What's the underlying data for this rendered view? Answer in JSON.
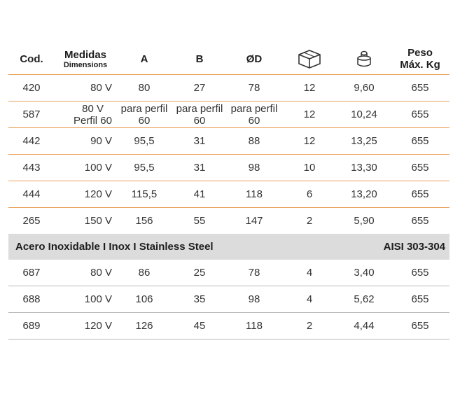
{
  "header": {
    "cod": "Cod.",
    "medidas": "Medidas",
    "dimensions": "Dimensions",
    "a": "A",
    "b": "B",
    "od": "ØD",
    "box_icon": "box-icon",
    "weight_icon": "weight-icon",
    "peso": "Peso",
    "max_kg": "Máx. Kg"
  },
  "rows": [
    {
      "cod": "420",
      "medidas": "80 V",
      "a": "80",
      "b": "27",
      "od": "78",
      "box": "12",
      "weight": "9,60",
      "peso": "655"
    },
    {
      "cod": "587",
      "medidas": [
        "80 V",
        "Perfil 60"
      ],
      "a": [
        "para perfil",
        "60"
      ],
      "b": [
        "para perfil",
        "60"
      ],
      "od": [
        "para perfil",
        "60"
      ],
      "box": "12",
      "weight": "10,24",
      "peso": "655"
    },
    {
      "cod": "442",
      "medidas": "90 V",
      "a": "95,5",
      "b": "31",
      "od": "88",
      "box": "12",
      "weight": "13,25",
      "peso": "655"
    },
    {
      "cod": "443",
      "medidas": "100 V",
      "a": "95,5",
      "b": "31",
      "od": "98",
      "box": "10",
      "weight": "13,30",
      "peso": "655"
    },
    {
      "cod": "444",
      "medidas": "120 V",
      "a": "115,5",
      "b": "41",
      "od": "118",
      "box": "6",
      "weight": "13,20",
      "peso": "655"
    },
    {
      "cod": "265",
      "medidas": "150 V",
      "a": "156",
      "b": "55",
      "od": "147",
      "box": "2",
      "weight": "5,90",
      "peso": "655"
    }
  ],
  "section": {
    "title": "Acero Inoxidable I Inox I Stainless Steel",
    "spec": "AISI 303-304"
  },
  "steel_rows": [
    {
      "cod": "687",
      "medidas": "80 V",
      "a": "86",
      "b": "25",
      "od": "78",
      "box": "4",
      "weight": "3,40",
      "peso": "655"
    },
    {
      "cod": "688",
      "medidas": "100 V",
      "a": "106",
      "b": "35",
      "od": "98",
      "box": "4",
      "weight": "5,62",
      "peso": "655"
    },
    {
      "cod": "689",
      "medidas": "120 V",
      "a": "126",
      "b": "45",
      "od": "118",
      "box": "2",
      "weight": "4,44",
      "peso": "655"
    }
  ],
  "colors": {
    "orange_rule": "#e8a05a",
    "gray_rule": "#b8b8b8",
    "section_bg": "#dcdcdc"
  }
}
